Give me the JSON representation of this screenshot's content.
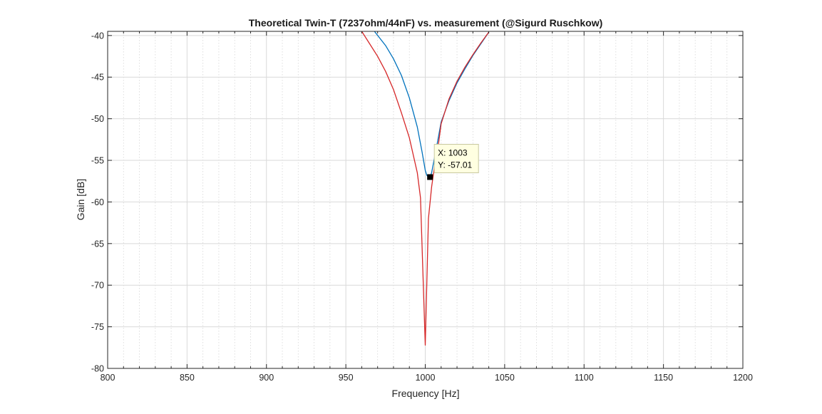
{
  "chart_data": {
    "type": "line",
    "title": "Theoretical Twin-T (7237ohm/44nF) vs. measurement (@Sigurd Ruschkow)",
    "xlabel": "Frequency [Hz]",
    "ylabel": "Gain [dB]",
    "xlim": [
      800,
      1200
    ],
    "ylim": [
      -80,
      -39.5
    ],
    "x_ticks": [
      800,
      850,
      900,
      950,
      1000,
      1050,
      1100,
      1150,
      1200
    ],
    "x_tick_labels": [
      "800",
      "850",
      "900",
      "950",
      "1000",
      "1050",
      "1100",
      "1150",
      "1200"
    ],
    "y_ticks": [
      -80,
      -75,
      -70,
      -65,
      -60,
      -55,
      -50,
      -45,
      -40
    ],
    "y_tick_labels": [
      "-80",
      "-75",
      "-70",
      "-65",
      "-60",
      "-55",
      "-50",
      "-45",
      "-40"
    ],
    "grid": true,
    "minor_grid": true,
    "series": [
      {
        "color": "#0072bd",
        "points": [
          [
            968,
            -39.5
          ],
          [
            975,
            -41.2
          ],
          [
            980,
            -42.8
          ],
          [
            985,
            -44.8
          ],
          [
            990,
            -47.5
          ],
          [
            995,
            -51.0
          ],
          [
            998,
            -54.0
          ],
          [
            1000,
            -56.2
          ],
          [
            1001,
            -56.8
          ],
          [
            1002,
            -57.0
          ],
          [
            1003,
            -57.01
          ],
          [
            1004,
            -56.5
          ],
          [
            1006,
            -54.5
          ],
          [
            1008,
            -52.5
          ],
          [
            1010,
            -50.4
          ],
          [
            1015,
            -47.8
          ],
          [
            1020,
            -45.7
          ],
          [
            1025,
            -44.0
          ],
          [
            1030,
            -42.4
          ],
          [
            1035,
            -41.0
          ],
          [
            1040,
            -39.6
          ]
        ]
      },
      {
        "color": "#d62728",
        "points": [
          [
            960,
            -39.5
          ],
          [
            965,
            -41.0
          ],
          [
            970,
            -42.5
          ],
          [
            975,
            -44.3
          ],
          [
            980,
            -46.5
          ],
          [
            985,
            -49.3
          ],
          [
            990,
            -52.3
          ],
          [
            995,
            -56.5
          ],
          [
            997,
            -59.5
          ],
          [
            1000,
            -77.2
          ],
          [
            1002,
            -62.0
          ],
          [
            1004,
            -58.2
          ],
          [
            1006,
            -55.5
          ],
          [
            1008,
            -53.5
          ],
          [
            1010,
            -50.6
          ],
          [
            1015,
            -47.6
          ],
          [
            1020,
            -45.5
          ],
          [
            1025,
            -43.8
          ],
          [
            1030,
            -42.3
          ],
          [
            1035,
            -40.9
          ],
          [
            1040,
            -39.6
          ]
        ]
      }
    ],
    "datatip": {
      "x_text": "X: 1003",
      "y_text": "Y: -57.01",
      "x": 1003,
      "y": -57.01
    }
  }
}
